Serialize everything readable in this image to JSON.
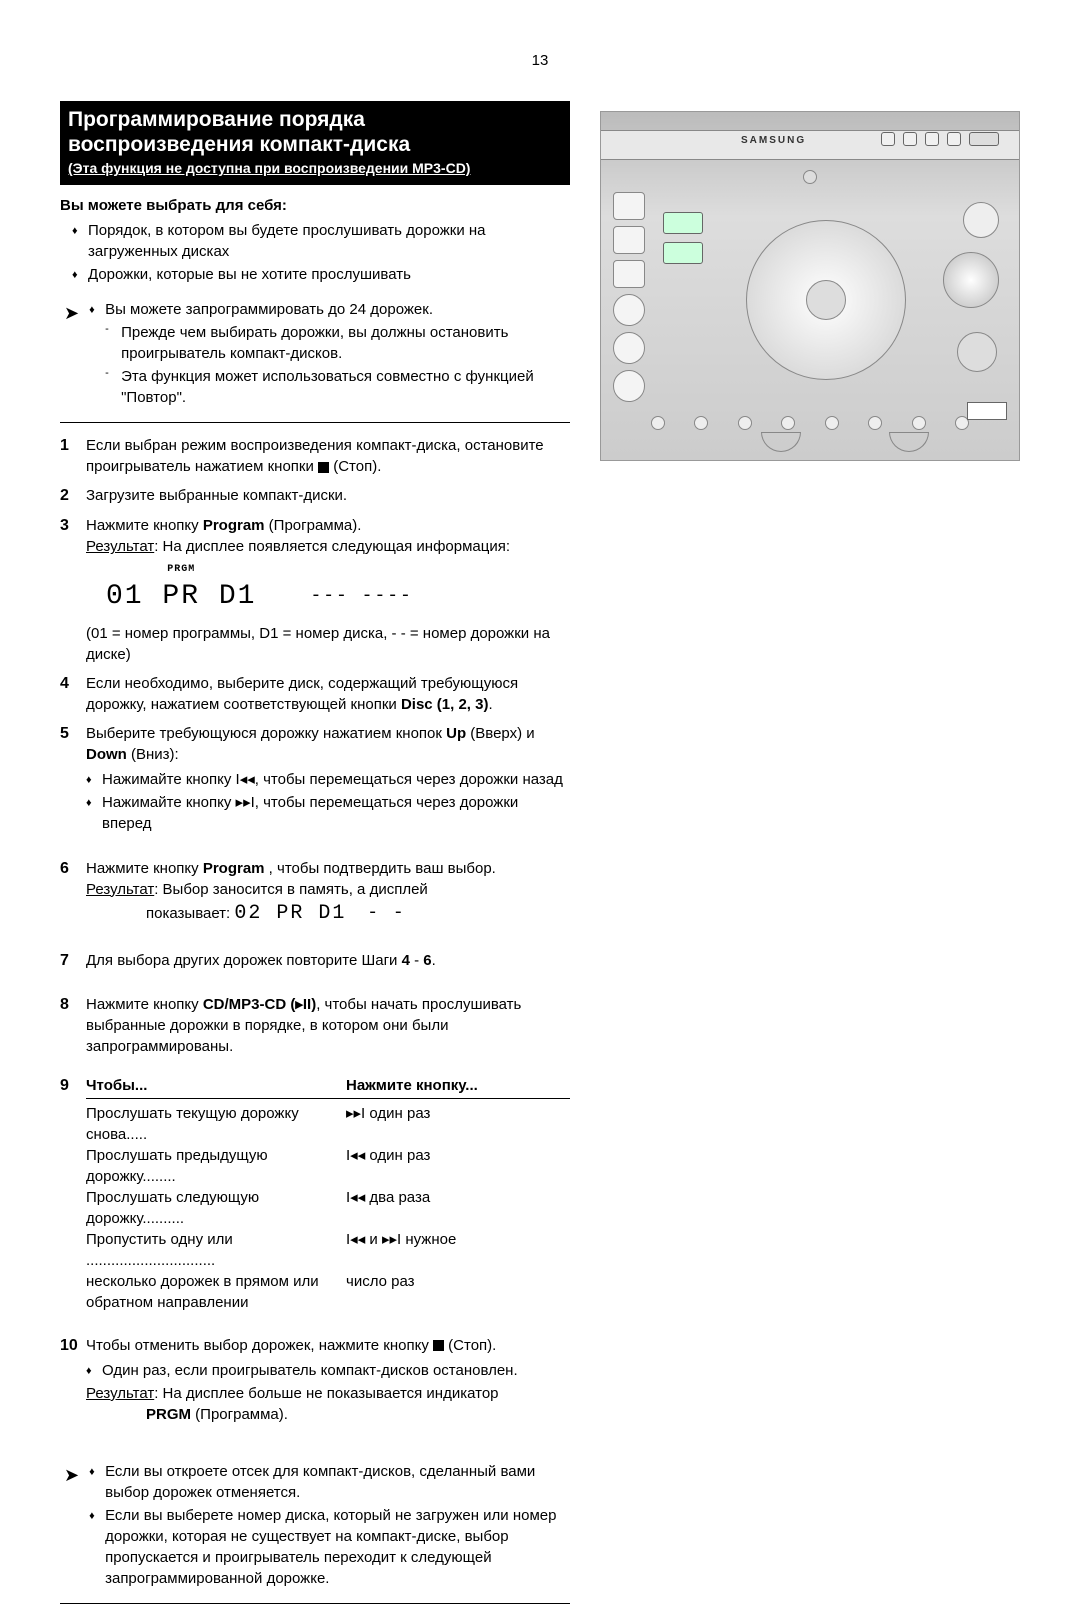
{
  "page_number": "13",
  "title": {
    "line1": "Программирование порядка",
    "line2": "воспроизведения компакт-диска",
    "sub": "(Эта функция не доступна при воспроизведении MP3-CD)"
  },
  "intro": {
    "heading": "Вы можете выбрать для себя:",
    "bullets": [
      "Порядок, в котором вы будете прослушивать дорожки на загруженных дисках",
      "Дорожки, которые вы не хотите прослушивать"
    ]
  },
  "note_block": [
    "Вы можете запрограммировать до 24 дорожек.",
    "Прежде чем выбирать дорожки, вы должны остановить проигрыватель компакт-дисков.",
    "Эта функция может использоваться совместно с функцией \"Повтор\"."
  ],
  "steps": {
    "s1": "Если выбран режим воспроизведения компакт-диска, остановите проигрыватель нажатием кнопки ■ (Стоп).",
    "s2": "Загрузите выбранные компакт-диски.",
    "s3_a": "Нажмите кнопку ",
    "s3_b": "Program",
    "s3_c": " (Программа).",
    "s3_res_label": "Результат",
    "s3_res": ": На дисплее появляется следующая информация:",
    "s3_seg_label": "PRGM",
    "s3_seg": "01 PR  D1",
    "s3_seg_dash": "--- ----",
    "s3_caption": "(01 = номер программы, D1 = номер диска, - -  = номер дорожки на диске)",
    "s4_a": "Если необходимо, выберите диск, содержащий требующуюся дорожку, нажатием соответствующей кнопки ",
    "s4_b": "Disc (1, 2, 3)",
    "s4_c": ".",
    "s5_a": "Выберите требующуюся дорожку нажатием кнопок ",
    "s5_b": "Up",
    "s5_c": " (Вверх) и ",
    "s5_d": "Down",
    "s5_e": " (Вниз):",
    "s5_inner1": "Нажимайте кнопку I◂◂, чтобы перемещаться через дорожки назад",
    "s5_inner2": "Нажимайте кнопку ▸▸I, чтобы перемещаться через дорожки вперед",
    "s6_a": "Нажмите кнопку ",
    "s6_b": "Program",
    "s6_c": " , чтобы подтвердить ваш выбор.",
    "s6_res_label": "Результат",
    "s6_res": ": Выбор заносится в память, а дисплей",
    "s6_shows": "показывает:",
    "s6_seg": "02 PR  D1",
    "s6_seg_dash": "- -",
    "s7_a": "Для выбора других дорожек повторите Шаги ",
    "s7_b": "4",
    "s7_c": " - ",
    "s7_d": "6",
    "s7_e": ".",
    "s8_a": "Нажмите кнопку ",
    "s8_b": "CD/MP3-CD (▸II)",
    "s8_c": ", чтобы начать прослушивать выбранные дорожки в порядке, в котором они были запрограммированы.",
    "s9_header_left": "Чтобы...",
    "s9_header_right": "Нажмите кнопку...",
    "s9_rows": [
      {
        "l": "Прослушать текущую дорожку снова.....",
        "r": "▸▸I один раз"
      },
      {
        "l": "Прослушать предыдущую дорожку........",
        "r": "I◂◂ один раз"
      },
      {
        "l": "Прослушать следующую дорожку..........",
        "r": "I◂◂ два раза"
      },
      {
        "l": "Пропустить одну или ...............................",
        "r": "I◂◂ и ▸▸I нужное"
      },
      {
        "l": "несколько дорожек в прямом или",
        "r": "число раз"
      },
      {
        "l": "обратном направлении",
        "r": ""
      }
    ],
    "s10_a": "Чтобы отменить выбор дорожек, нажмите кнопку ■ (Стоп).",
    "s10_inner": "Один раз, если проигрыватель компакт-дисков остановлен.",
    "s10_res_label": "Результат",
    "s10_res_a": ": На дисплее больше не показывается индикатор ",
    "s10_res_b": "PRGM",
    "s10_res_c": " (Программа)."
  },
  "final_notes": [
    "Если вы откроете отсек для компакт-дисков, сделанный вами выбор дорожек отменяется.",
    "Если вы выберете номер диска, который не загружен или номер дорожки, которая не существует на компакт-диске, выбор пропускается и проигрыватель переходит к следующей запрограммированной дорожке."
  ],
  "device": {
    "brand": "SAMSUNG"
  },
  "colors": {
    "title_bg": "#000000",
    "title_fg": "#ffffff",
    "text": "#000000",
    "device_border": "#999999"
  }
}
